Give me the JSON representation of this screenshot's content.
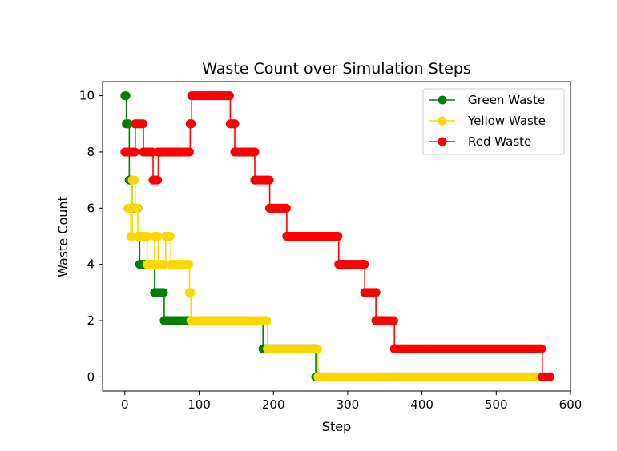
{
  "chart_data": {
    "type": "line",
    "title": "Waste Count over Simulation Steps",
    "xlabel": "Step",
    "ylabel": "Waste Count",
    "xlim": [
      -30,
      600
    ],
    "ylim": [
      -0.5,
      10.5
    ],
    "xticks": [
      0,
      100,
      200,
      300,
      400,
      500,
      600
    ],
    "yticks": [
      0,
      2,
      4,
      6,
      8,
      10
    ],
    "grid": false,
    "legend_position": "top-right",
    "series": [
      {
        "name": "Green Waste",
        "color": "#008000",
        "steps": [
          [
            0,
            10
          ],
          [
            2,
            9
          ],
          [
            6,
            7
          ],
          [
            10,
            6
          ],
          [
            18,
            5
          ],
          [
            20,
            4
          ],
          [
            40,
            3
          ],
          [
            53,
            2
          ],
          [
            186,
            1
          ],
          [
            257,
            0
          ],
          [
            572,
            0
          ]
        ]
      },
      {
        "name": "Yellow Waste",
        "color": "#FFD700",
        "steps": [
          [
            4,
            6
          ],
          [
            8,
            5
          ],
          [
            10,
            7
          ],
          [
            14,
            6
          ],
          [
            18,
            5
          ],
          [
            30,
            4
          ],
          [
            40,
            5
          ],
          [
            45,
            4
          ],
          [
            55,
            5
          ],
          [
            62,
            4
          ],
          [
            87,
            3
          ],
          [
            89,
            2
          ],
          [
            192,
            1
          ],
          [
            260,
            0
          ],
          [
            560,
            0
          ]
        ]
      },
      {
        "name": "Red Waste",
        "color": "#FF0000",
        "steps": [
          [
            0,
            8
          ],
          [
            14,
            9
          ],
          [
            25,
            8
          ],
          [
            38,
            7
          ],
          [
            45,
            8
          ],
          [
            88,
            9
          ],
          [
            90,
            10
          ],
          [
            142,
            9
          ],
          [
            148,
            8
          ],
          [
            175,
            7
          ],
          [
            195,
            6
          ],
          [
            218,
            5
          ],
          [
            288,
            4
          ],
          [
            323,
            3
          ],
          [
            338,
            2
          ],
          [
            363,
            1
          ],
          [
            562,
            0
          ],
          [
            572,
            0
          ]
        ]
      }
    ]
  }
}
